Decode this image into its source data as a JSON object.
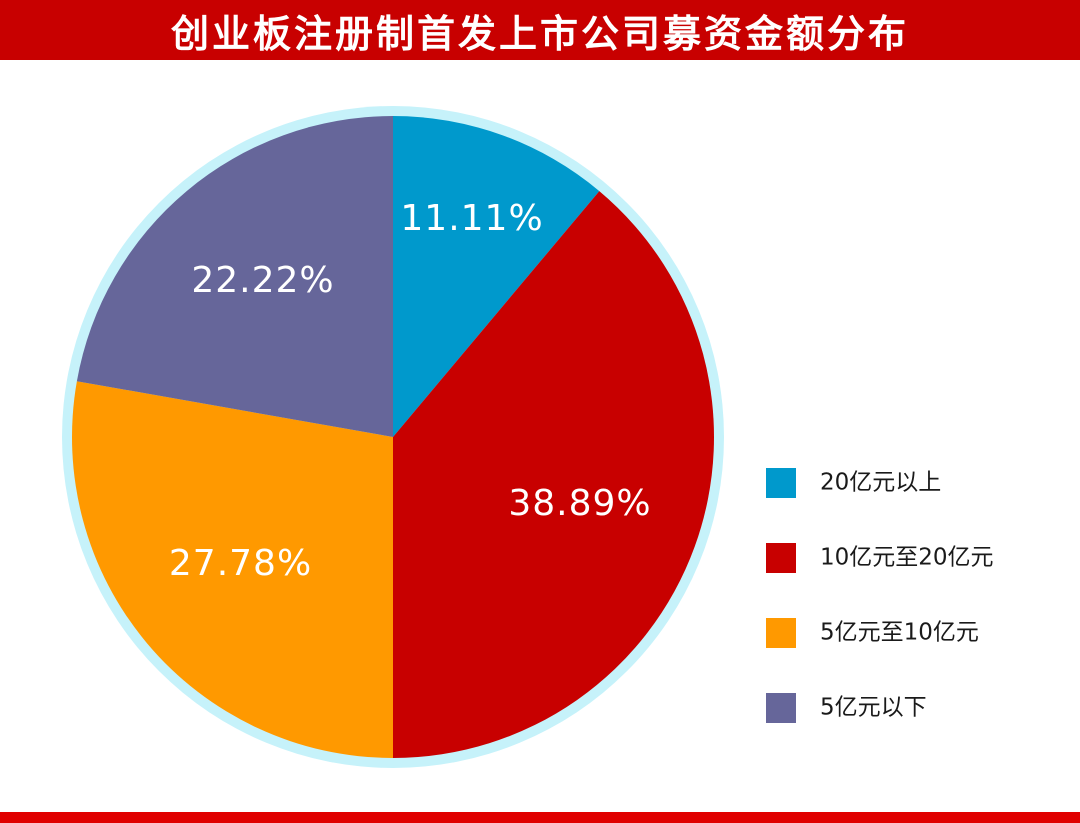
{
  "chart_data": {
    "type": "pie",
    "title": "创业板注册制首发上市公司募资金额分布",
    "categories": [
      "20亿元以上",
      "10亿元至20亿元",
      "5亿元至10亿元",
      "5亿元以下"
    ],
    "values": [
      11.11,
      38.89,
      27.78,
      22.22
    ],
    "labels": [
      "11.11%",
      "38.89%",
      "27.78%",
      "22.22%"
    ],
    "colors": [
      "#0099cc",
      "#c80000",
      "#ff9900",
      "#66669a"
    ],
    "legend_position": "right",
    "ring_color": "#c6f2fa",
    "title_bar_color": "#c80000"
  }
}
